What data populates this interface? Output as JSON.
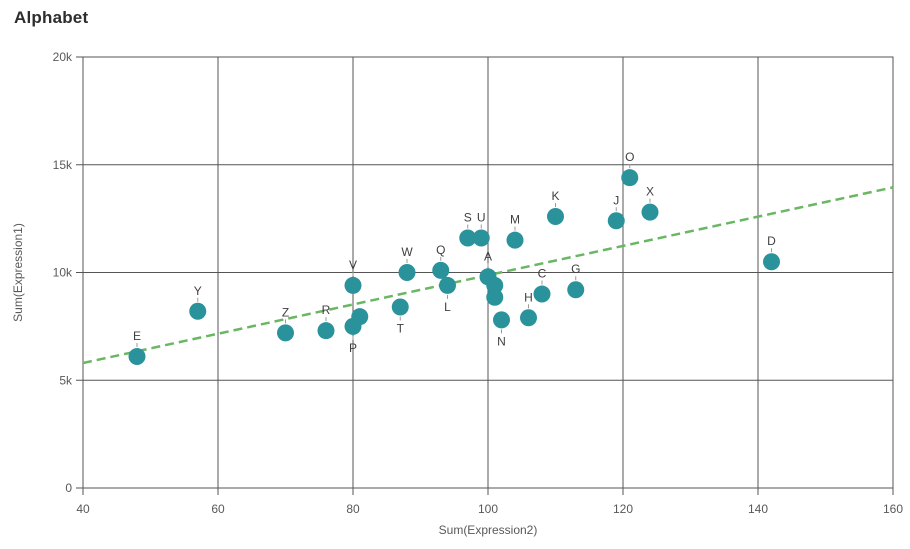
{
  "title": "Alphabet",
  "colors": {
    "background": "#ffffff",
    "title_text": "#2d2d2d",
    "dot": "#2a929b",
    "trend": "#6ab763",
    "grid": "#555555",
    "axis_text": "#595959",
    "point_label_text": "#404040",
    "leader": "#9a9a9a"
  },
  "chart_data": {
    "type": "scatter",
    "title": "Alphabet",
    "xlabel": "Sum(Expression2)",
    "ylabel": "Sum(Expression1)",
    "xlim": [
      40,
      160
    ],
    "ylim": [
      0,
      20000
    ],
    "x_ticks": [
      40,
      60,
      80,
      100,
      120,
      140,
      160
    ],
    "x_tick_labels": [
      "40",
      "60",
      "80",
      "100",
      "120",
      "140",
      "160"
    ],
    "y_ticks": [
      0,
      5000,
      10000,
      15000,
      20000
    ],
    "y_tick_labels": [
      "0",
      "5k",
      "10k",
      "15k",
      "20k"
    ],
    "grid": true,
    "legend": false,
    "points": [
      {
        "label": "E",
        "x": 48,
        "y": 6100,
        "label_pos": "above"
      },
      {
        "label": "Y",
        "x": 57,
        "y": 8200,
        "label_pos": "above"
      },
      {
        "label": "Z",
        "x": 70,
        "y": 7200,
        "label_pos": "above"
      },
      {
        "label": "R",
        "x": 76,
        "y": 7300,
        "label_pos": "above"
      },
      {
        "label": "V",
        "x": 80,
        "y": 9400,
        "label_pos": "above"
      },
      {
        "label": "P",
        "x": 80,
        "y": 7500,
        "label_pos": "below"
      },
      {
        "label": "",
        "x": 81,
        "y": 7950,
        "label_pos": "none"
      },
      {
        "label": "T",
        "x": 87,
        "y": 8400,
        "label_pos": "below"
      },
      {
        "label": "W",
        "x": 88,
        "y": 10000,
        "label_pos": "above"
      },
      {
        "label": "Q",
        "x": 93,
        "y": 10100,
        "label_pos": "above"
      },
      {
        "label": "L",
        "x": 94,
        "y": 9400,
        "label_pos": "below"
      },
      {
        "label": "S",
        "x": 97,
        "y": 11600,
        "label_pos": "above"
      },
      {
        "label": "U",
        "x": 99,
        "y": 11600,
        "label_pos": "above"
      },
      {
        "label": "A",
        "x": 100,
        "y": 9800,
        "label_pos": "above"
      },
      {
        "label": "",
        "x": 101,
        "y": 9400,
        "label_pos": "none"
      },
      {
        "label": "",
        "x": 101,
        "y": 8850,
        "label_pos": "none"
      },
      {
        "label": "N",
        "x": 102,
        "y": 7800,
        "label_pos": "below"
      },
      {
        "label": "M",
        "x": 104,
        "y": 11500,
        "label_pos": "above"
      },
      {
        "label": "H",
        "x": 106,
        "y": 7900,
        "label_pos": "above"
      },
      {
        "label": "C",
        "x": 108,
        "y": 9000,
        "label_pos": "above"
      },
      {
        "label": "K",
        "x": 110,
        "y": 12600,
        "label_pos": "above"
      },
      {
        "label": "G",
        "x": 113,
        "y": 9200,
        "label_pos": "above"
      },
      {
        "label": "J",
        "x": 119,
        "y": 12400,
        "label_pos": "above"
      },
      {
        "label": "O",
        "x": 121,
        "y": 14400,
        "label_pos": "above"
      },
      {
        "label": "X",
        "x": 124,
        "y": 12800,
        "label_pos": "above"
      },
      {
        "label": "D",
        "x": 142,
        "y": 10500,
        "label_pos": "above"
      }
    ],
    "trend_line": {
      "style": "dashed",
      "x1": 40,
      "y1": 5800,
      "x2": 160,
      "y2": 13950
    }
  }
}
